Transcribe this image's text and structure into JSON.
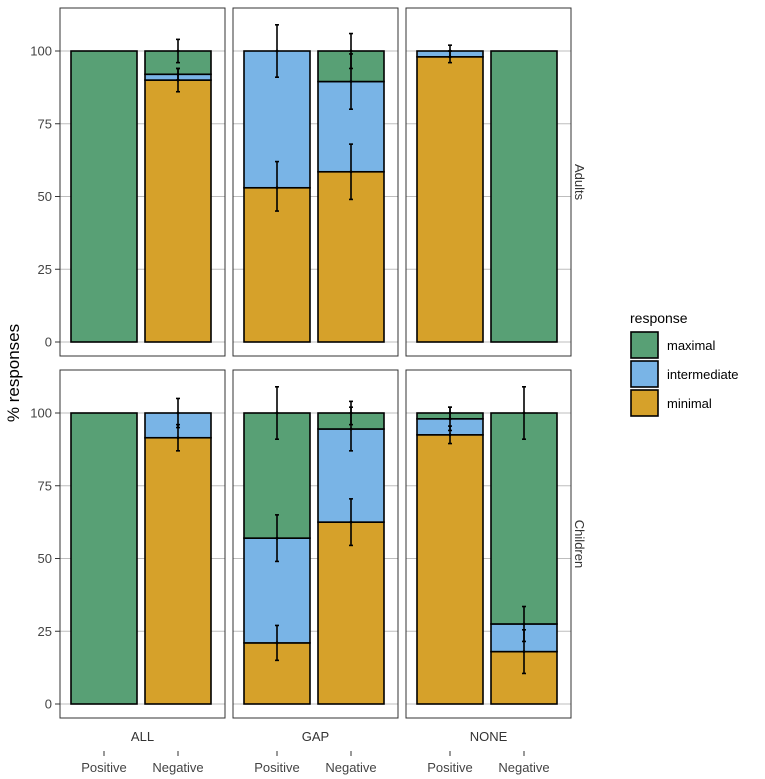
{
  "colors": {
    "maximal": "#58A075",
    "intermediate": "#79B4E6",
    "minimal": "#D6A12A",
    "grid": "#BDBDBD",
    "panel_border": "#333333",
    "bar_outline": "#000000"
  },
  "chart_data": {
    "type": "bar",
    "stacked": true,
    "title": "",
    "xlabel": "",
    "ylabel": "% responses",
    "ylim": [
      0,
      100
    ],
    "yticks": [
      0,
      25,
      50,
      75,
      100
    ],
    "columns": [
      "ALL",
      "GAP",
      "NONE"
    ],
    "rows": [
      "Adults",
      "Children"
    ],
    "categories": [
      "Positive",
      "Negative"
    ],
    "stack_order": [
      "minimal",
      "intermediate",
      "maximal"
    ],
    "legend": {
      "title": "response",
      "position": "right",
      "entries": [
        {
          "key": "maximal",
          "label": "maximal"
        },
        {
          "key": "intermediate",
          "label": "intermediate"
        },
        {
          "key": "minimal",
          "label": "minimal"
        }
      ]
    },
    "panels": [
      {
        "row": "Adults",
        "column": "ALL",
        "bars": [
          {
            "category": "Positive",
            "minimal": 0,
            "intermediate": 0,
            "maximal": 100,
            "errors": []
          },
          {
            "category": "Negative",
            "minimal": 90,
            "intermediate": 2,
            "maximal": 8,
            "errors": [
              {
                "value": 90,
                "lo": 86,
                "hi": 94
              },
              {
                "value": 92,
                "lo": 90,
                "hi": 94
              },
              {
                "value": 100,
                "lo": 96,
                "hi": 104
              }
            ]
          }
        ]
      },
      {
        "row": "Adults",
        "column": "GAP",
        "bars": [
          {
            "category": "Positive",
            "minimal": 53,
            "intermediate": 47,
            "maximal": 0,
            "errors": [
              {
                "value": 53,
                "lo": 45,
                "hi": 62
              },
              {
                "value": 100,
                "lo": 91,
                "hi": 109
              }
            ]
          },
          {
            "category": "Negative",
            "minimal": 58.5,
            "intermediate": 31,
            "maximal": 10.5,
            "errors": [
              {
                "value": 58.5,
                "lo": 49,
                "hi": 68
              },
              {
                "value": 89.5,
                "lo": 80,
                "hi": 99
              },
              {
                "value": 100,
                "lo": 94,
                "hi": 106
              }
            ]
          }
        ]
      },
      {
        "row": "Adults",
        "column": "NONE",
        "bars": [
          {
            "category": "Positive",
            "minimal": 98,
            "intermediate": 2,
            "maximal": 0,
            "errors": [
              {
                "value": 98,
                "lo": 96,
                "hi": 100
              },
              {
                "value": 100,
                "lo": 98,
                "hi": 102
              }
            ]
          },
          {
            "category": "Negative",
            "minimal": 0,
            "intermediate": 0,
            "maximal": 100,
            "errors": []
          }
        ]
      },
      {
        "row": "Children",
        "column": "ALL",
        "bars": [
          {
            "category": "Positive",
            "minimal": 0,
            "intermediate": 0,
            "maximal": 100,
            "errors": []
          },
          {
            "category": "Negative",
            "minimal": 91.5,
            "intermediate": 8.5,
            "maximal": 0,
            "errors": [
              {
                "value": 91.5,
                "lo": 87,
                "hi": 96
              },
              {
                "value": 100,
                "lo": 95,
                "hi": 105
              }
            ]
          }
        ]
      },
      {
        "row": "Children",
        "column": "GAP",
        "bars": [
          {
            "category": "Positive",
            "minimal": 21,
            "intermediate": 36,
            "maximal": 43,
            "errors": [
              {
                "value": 21,
                "lo": 15,
                "hi": 27
              },
              {
                "value": 57,
                "lo": 49,
                "hi": 65
              },
              {
                "value": 100,
                "lo": 91,
                "hi": 109
              }
            ]
          },
          {
            "category": "Negative",
            "minimal": 62.5,
            "intermediate": 32,
            "maximal": 5.5,
            "errors": [
              {
                "value": 62.5,
                "lo": 54.5,
                "hi": 70.5
              },
              {
                "value": 94.5,
                "lo": 87,
                "hi": 102
              },
              {
                "value": 100,
                "lo": 96,
                "hi": 104
              }
            ]
          }
        ]
      },
      {
        "row": "Children",
        "column": "NONE",
        "bars": [
          {
            "category": "Positive",
            "minimal": 92.5,
            "intermediate": 5.5,
            "maximal": 2,
            "errors": [
              {
                "value": 92.5,
                "lo": 89.5,
                "hi": 95.5
              },
              {
                "value": 98,
                "lo": 94,
                "hi": 102
              },
              {
                "value": 100,
                "lo": 98,
                "hi": 102
              }
            ]
          },
          {
            "category": "Negative",
            "minimal": 18,
            "intermediate": 9.5,
            "maximal": 72.5,
            "errors": [
              {
                "value": 18,
                "lo": 10.5,
                "hi": 25.5
              },
              {
                "value": 27.5,
                "lo": 21.5,
                "hi": 33.5
              },
              {
                "value": 100,
                "lo": 91,
                "hi": 109
              }
            ]
          }
        ]
      }
    ]
  }
}
